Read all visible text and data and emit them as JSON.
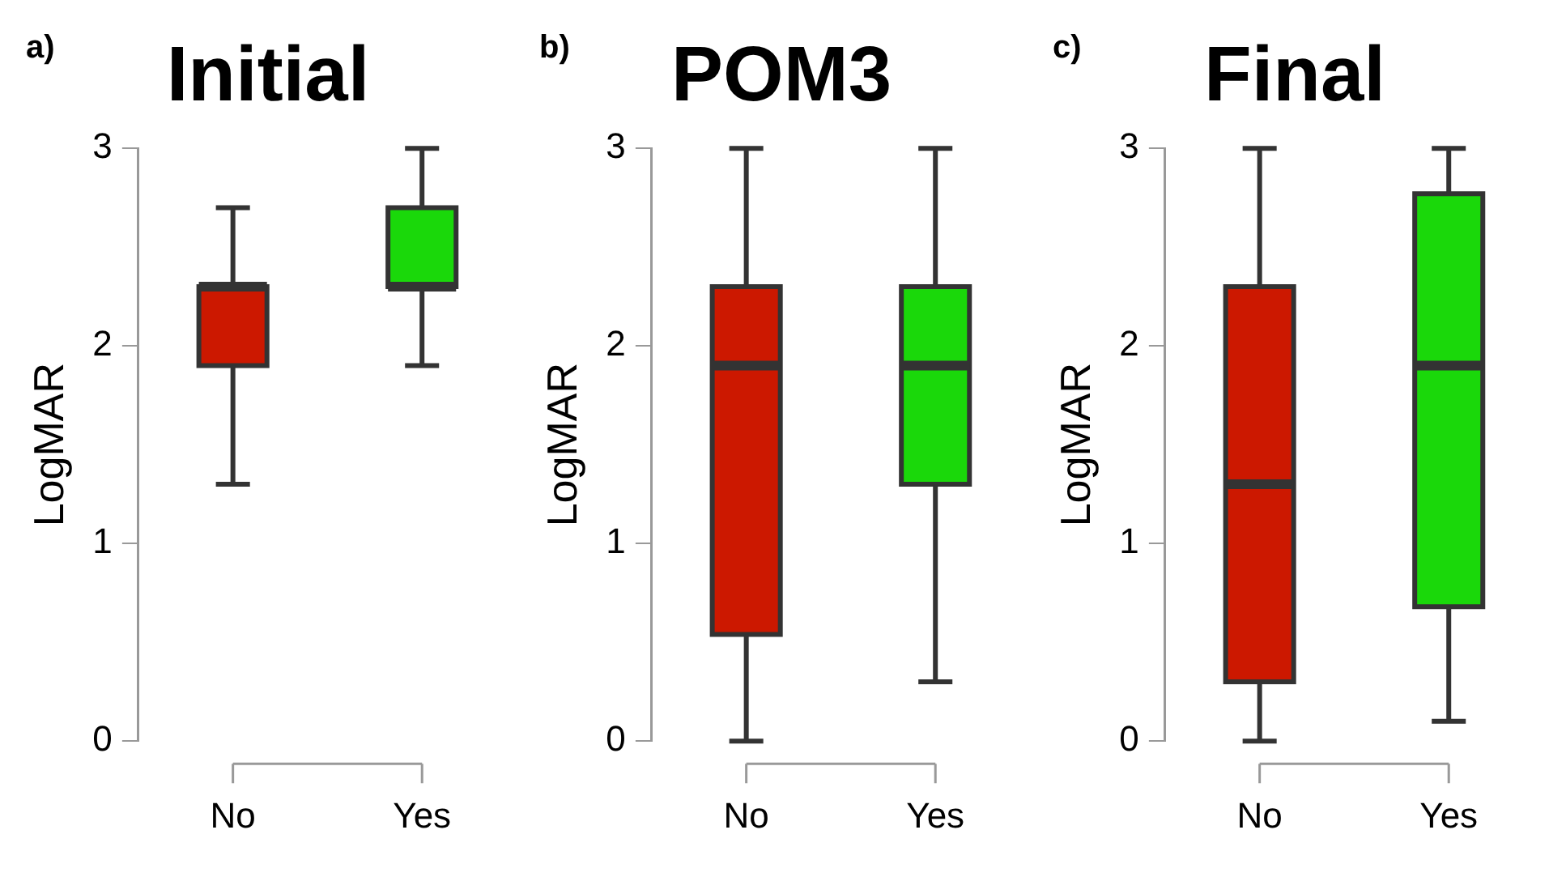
{
  "chart_data": [
    {
      "type": "box",
      "title": "Initial",
      "ylabel": "LogMAR",
      "annotations": [
        "a)"
      ],
      "categories": [
        "No",
        "Yes"
      ],
      "colors": [
        "#cc1800",
        "#1ad80a"
      ],
      "ylim": [
        0,
        3
      ],
      "yticks": [
        0,
        1,
        2,
        3
      ],
      "grid": false,
      "legend": false,
      "boxes": [
        {
          "low": 1.3,
          "q1": 1.9,
          "median": 2.3,
          "q3": 2.3,
          "high": 2.7
        },
        {
          "low": 1.9,
          "q1": 2.3,
          "median": 2.3,
          "q3": 2.7,
          "high": 3
        }
      ]
    },
    {
      "type": "box",
      "title": "POM3",
      "ylabel": "LogMAR",
      "annotations": [
        "b)"
      ],
      "categories": [
        "No",
        "Yes"
      ],
      "colors": [
        "#cc1800",
        "#1ad80a"
      ],
      "ylim": [
        0,
        3
      ],
      "yticks": [
        0,
        1,
        2,
        3
      ],
      "grid": false,
      "legend": false,
      "boxes": [
        {
          "low": 0,
          "q1": 0.54,
          "median": 1.9,
          "q3": 2.3,
          "high": 3
        },
        {
          "low": 0.3,
          "q1": 1.3,
          "median": 1.9,
          "q3": 2.3,
          "high": 3
        }
      ]
    },
    {
      "type": "box",
      "title": "Final",
      "ylabel": "LogMAR",
      "annotations": [
        "c)"
      ],
      "categories": [
        "No",
        "Yes"
      ],
      "colors": [
        "#cc1800",
        "#1ad80a"
      ],
      "ylim": [
        0,
        3
      ],
      "yticks": [
        0,
        1,
        2,
        3
      ],
      "grid": false,
      "legend": false,
      "boxes": [
        {
          "low": 0,
          "q1": 0.3,
          "median": 1.3,
          "q3": 2.3,
          "high": 3
        },
        {
          "low": 0.1,
          "q1": 0.68,
          "median": 1.9,
          "q3": 2.77,
          "high": 3
        }
      ]
    }
  ]
}
